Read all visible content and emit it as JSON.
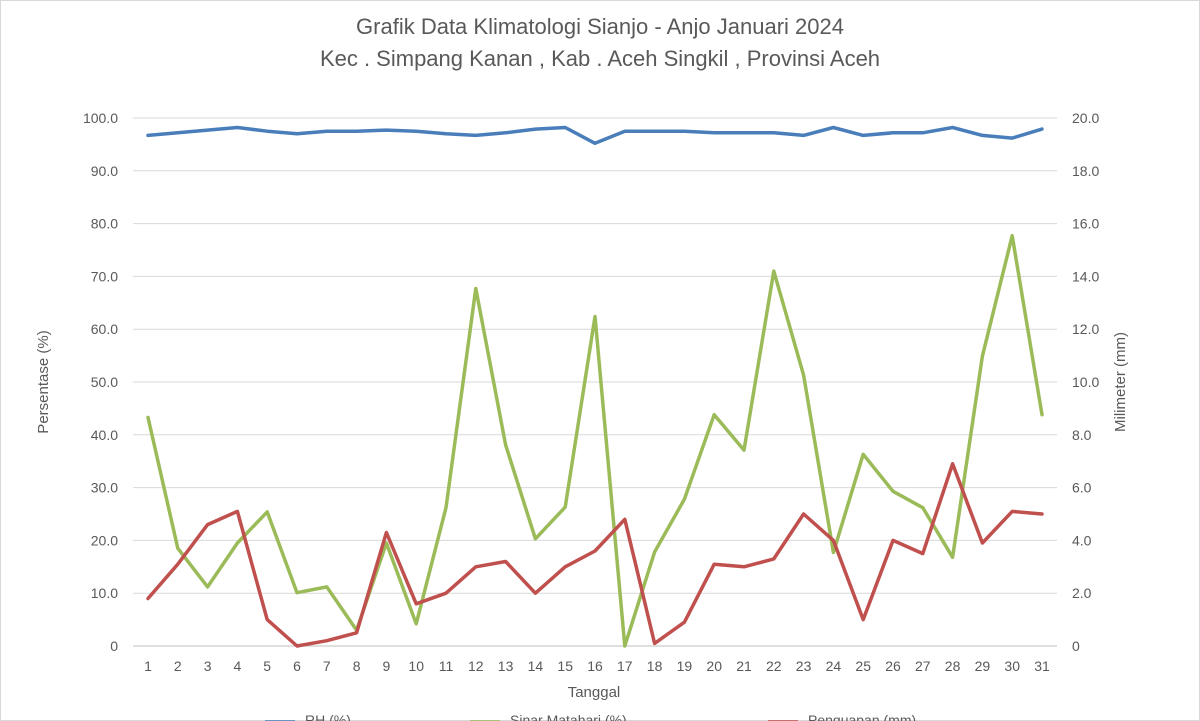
{
  "chart_data": {
    "type": "line",
    "title": [
      "Grafik Data Klimatologi Sianjo - Anjo Januari 2024",
      "Kec . Simpang Kanan , Kab . Aceh Singkil , Provinsi  Aceh"
    ],
    "xlabel": "Tanggal",
    "ylabel_left": "Persentase (%)",
    "ylabel_right": "Milimeter (mm)",
    "ylim_left": [
      0,
      100
    ],
    "ylim_right": [
      0,
      20
    ],
    "yticks_left": [
      "0",
      "10.0",
      "20.0",
      "30.0",
      "40.0",
      "50.0",
      "60.0",
      "70.0",
      "80.0",
      "90.0",
      "100.0"
    ],
    "yticks_right": [
      "0",
      "2.0",
      "4.0",
      "6.0",
      "8.0",
      "10.0",
      "12.0",
      "14.0",
      "16.0",
      "18.0",
      "20.0"
    ],
    "grid": true,
    "legend_position": "bottom",
    "x": [
      1,
      2,
      3,
      4,
      5,
      6,
      7,
      8,
      9,
      10,
      11,
      12,
      13,
      14,
      15,
      16,
      17,
      18,
      19,
      20,
      21,
      22,
      23,
      24,
      25,
      26,
      27,
      28,
      29,
      30,
      31
    ],
    "series": [
      {
        "name": "RH (%)",
        "axis": "left",
        "color": "#4a7ebb",
        "values": [
          96.7,
          97.2,
          97.7,
          98.2,
          97.5,
          97.0,
          97.5,
          97.5,
          97.7,
          97.5,
          97.0,
          96.7,
          97.2,
          97.9,
          98.2,
          95.2,
          97.5,
          97.5,
          97.5,
          97.2,
          97.2,
          97.2,
          96.7,
          98.2,
          96.7,
          97.2,
          97.2,
          98.2,
          96.7,
          96.2,
          97.9
        ]
      },
      {
        "name": "Sinar Matahari (%)",
        "axis": "left",
        "color": "#9bbb59",
        "values": [
          43.3,
          18.5,
          11.2,
          19.5,
          25.4,
          10.1,
          11.2,
          3.0,
          19.5,
          4.2,
          26.2,
          67.7,
          38.1,
          20.3,
          26.3,
          62.4,
          0.0,
          17.8,
          27.8,
          43.8,
          37.1,
          71.0,
          51.3,
          17.7,
          36.3,
          29.3,
          26.2,
          16.8,
          54.9,
          77.7,
          43.8
        ]
      },
      {
        "name": "Penguapan (mm)",
        "axis": "right",
        "color": "#c0504d",
        "values": [
          1.8,
          3.1,
          4.6,
          5.1,
          1.0,
          0.0,
          0.2,
          0.5,
          4.3,
          1.6,
          2.0,
          3.0,
          3.2,
          2.0,
          3.0,
          3.6,
          4.8,
          0.1,
          0.9,
          3.1,
          3.0,
          3.3,
          5.0,
          4.0,
          1.0,
          4.0,
          3.5,
          6.9,
          3.9,
          5.1,
          5.0
        ]
      }
    ]
  }
}
